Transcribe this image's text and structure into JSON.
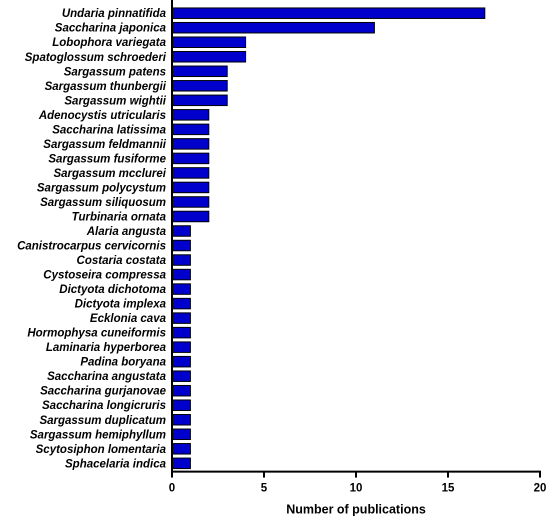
{
  "chart_data": {
    "type": "bar",
    "orientation": "horizontal",
    "categories": [
      "Undaria pinnatifida",
      "Saccharina japonica",
      "Lobophora variegata",
      "Spatoglossum schroederi",
      "Sargassum patens",
      "Sargassum thunbergii",
      "Sargassum wightii",
      "Adenocystis utricularis",
      "Saccharina latissima",
      "Sargassum feldmannii",
      "Sargassum fusiforme",
      "Sargassum mcclurei",
      "Sargassum polycystum",
      "Sargassum siliquosum",
      "Turbinaria ornata",
      "Alaria angusta",
      "Canistrocarpus cervicornis",
      "Costaria costata",
      "Cystoseira compressa",
      "Dictyota dichotoma",
      "Dictyota implexa",
      "Ecklonia cava",
      "Hormophysa cuneiformis",
      "Laminaria hyperborea",
      "Padina boryana",
      "Saccharina angustata",
      "Saccharina gurjanovae",
      "Saccharina longicruris",
      "Sargassum duplicatum",
      "Sargassum hemiphyllum",
      "Scytosiphon lomentaria",
      "Sphacelaria indica"
    ],
    "values": [
      17,
      11,
      4,
      4,
      3,
      3,
      3,
      2,
      2,
      2,
      2,
      2,
      2,
      2,
      2,
      1,
      1,
      1,
      1,
      1,
      1,
      1,
      1,
      1,
      1,
      1,
      1,
      1,
      1,
      1,
      1,
      1
    ],
    "title": "",
    "xlabel": "Number of publications",
    "ylabel": "",
    "xlim": [
      0,
      20
    ],
    "xticks": [
      0,
      5,
      10,
      15,
      20
    ],
    "grid": false,
    "legend": "none",
    "bar_color": "#0000cc"
  }
}
